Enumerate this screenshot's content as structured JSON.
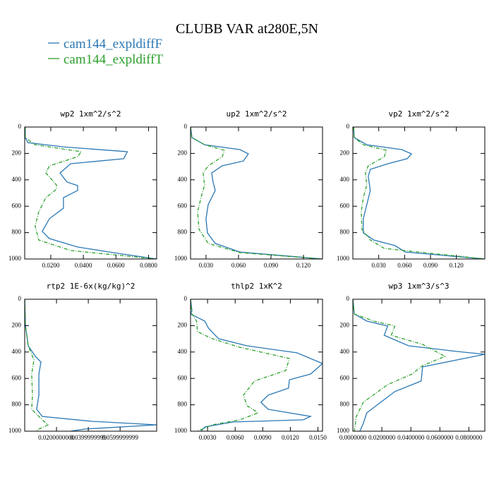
{
  "title": "CLUBB VAR at280E,5N",
  "chart_data": [
    {
      "type": "line",
      "title": "wp2  1xm^2/s^2",
      "ylim": [
        0,
        1000
      ],
      "y_inverted": true,
      "yticks": [
        0,
        200,
        400,
        600,
        800,
        1000
      ],
      "xlim": [
        0.004,
        0.085
      ],
      "xticks": [
        {
          "value": 0.02,
          "label": "0.0200"
        },
        {
          "value": 0.04,
          "label": "0.0400"
        },
        {
          "value": 0.06,
          "label": "0.0600"
        },
        {
          "value": 0.08,
          "label": "0.0800"
        }
      ],
      "series": [
        {
          "name": "cam144_expldiffF",
          "color": "#2b78b4",
          "style": "solid",
          "y": [
            0,
            80,
            118,
            150,
            187,
            240,
            278,
            348,
            417,
            444,
            481,
            535,
            615,
            695,
            791,
            845,
            909,
            952,
            1000
          ],
          "values": [
            0.0043,
            0.0043,
            0.006,
            0.0278,
            0.067,
            0.0648,
            0.0322,
            0.0257,
            0.03,
            0.0365,
            0.0365,
            0.0278,
            0.0278,
            0.0191,
            0.0148,
            0.0191,
            0.0365,
            0.0583,
            0.085
          ]
        },
        {
          "name": "cam144_expldiffT",
          "color": "#2ca02c",
          "style": "dashdot",
          "y": [
            0,
            80,
            134,
            187,
            225,
            294,
            348,
            439,
            471,
            535,
            642,
            749,
            856,
            936,
            1000
          ],
          "values": [
            0.0043,
            0.0043,
            0.0104,
            0.0387,
            0.0365,
            0.0191,
            0.017,
            0.0235,
            0.0235,
            0.017,
            0.0126,
            0.0104,
            0.0126,
            0.0322,
            0.085
          ]
        }
      ]
    },
    {
      "type": "line",
      "title": "up2  1xm^2/s^2",
      "ylim": [
        0,
        1000
      ],
      "y_inverted": true,
      "yticks": [
        0,
        200,
        400,
        600,
        800,
        1000
      ],
      "xlim": [
        0.0157,
        0.1376
      ],
      "xticks": [
        {
          "value": 0.03,
          "label": "0.030"
        },
        {
          "value": 0.06,
          "label": "0.060"
        },
        {
          "value": 0.09,
          "label": "0.090"
        },
        {
          "value": 0.12,
          "label": "0.120"
        }
      ],
      "series": [
        {
          "name": "cam144_expldiffF",
          "color": "#2b78b4",
          "style": "solid",
          "y": [
            0,
            80,
            134,
            171,
            203,
            257,
            294,
            348,
            417,
            481,
            588,
            695,
            802,
            882,
            947,
            1000
          ],
          "values": [
            0.0157,
            0.017,
            0.0287,
            0.0613,
            0.0691,
            0.0645,
            0.045,
            0.0352,
            0.0365,
            0.0385,
            0.032,
            0.03,
            0.0313,
            0.0385,
            0.0613,
            0.1376
          ]
        },
        {
          "name": "cam144_expldiffT",
          "color": "#2ca02c",
          "style": "dashdot",
          "y": [
            0,
            80,
            134,
            176,
            225,
            294,
            348,
            439,
            535,
            642,
            775,
            882,
            952,
            1000
          ],
          "values": [
            0.0157,
            0.017,
            0.0287,
            0.0469,
            0.045,
            0.032,
            0.0274,
            0.0287,
            0.0254,
            0.0222,
            0.0235,
            0.032,
            0.0613,
            0.1376
          ]
        }
      ]
    },
    {
      "type": "line",
      "title": "vp2  1xm^2/s^2",
      "ylim": [
        0,
        1000
      ],
      "y_inverted": true,
      "yticks": [
        0,
        200,
        400,
        600,
        800,
        1000
      ],
      "xlim": [
        0,
        0.153
      ],
      "xticks": [
        {
          "value": 0.03,
          "label": "0.030"
        },
        {
          "value": 0.06,
          "label": "0.060"
        },
        {
          "value": 0.09,
          "label": "0.090"
        },
        {
          "value": 0.12,
          "label": "0.120"
        }
      ],
      "series": [
        {
          "name": "cam144_expldiffF",
          "color": "#2b78b4",
          "style": "solid",
          "y": [
            0,
            80,
            134,
            171,
            203,
            240,
            278,
            321,
            374,
            481,
            588,
            695,
            802,
            856,
            898,
            947,
            1000
          ],
          "values": [
            0.001,
            0.0016,
            0.0162,
            0.0567,
            0.068,
            0.063,
            0.0405,
            0.0202,
            0.0178,
            0.0202,
            0.0162,
            0.0121,
            0.0121,
            0.0243,
            0.0486,
            0.0608,
            0.153
          ]
        },
        {
          "name": "cam144_expldiffT",
          "color": "#2ca02c",
          "style": "dashdot",
          "y": [
            0,
            80,
            134,
            176,
            225,
            294,
            348,
            439,
            535,
            642,
            775,
            856,
            920,
            1000
          ],
          "values": [
            0.001,
            0.0016,
            0.0121,
            0.0389,
            0.0365,
            0.0178,
            0.0146,
            0.0162,
            0.0121,
            0.0097,
            0.0105,
            0.0202,
            0.0365,
            0.153
          ]
        }
      ]
    },
    {
      "type": "line",
      "title": "rtp2  1E-6x(kg/kg)^2",
      "ylim": [
        0,
        1000
      ],
      "y_inverted": true,
      "yticks": [
        0,
        200,
        400,
        600,
        800,
        1000
      ],
      "xlim": [
        0,
        0.083
      ],
      "xticks": [
        {
          "value": 0.02,
          "label": "0.0200000000"
        },
        {
          "value": 0.04,
          "label": "0.0399999999"
        },
        {
          "value": 0.06,
          "label": "0.0599999999"
        }
      ],
      "series": [
        {
          "name": "cam144_expldiffF",
          "color": "#2b78b4",
          "style": "solid",
          "y": [
            0,
            193,
            353,
            433,
            476,
            567,
            727,
            834,
            888,
            925,
            952,
            984,
            1000
          ],
          "values": [
            0,
            0.0004,
            0.0022,
            0.0067,
            0.0102,
            0.0089,
            0.0089,
            0.0075,
            0.0111,
            0.0422,
            0.083,
            0.0377,
            0.0289
          ]
        },
        {
          "name": "cam144_expldiffT",
          "color": "#2ca02c",
          "style": "dashdot",
          "y": [
            0,
            193,
            353,
            460,
            567,
            727,
            834,
            914,
            952,
            984,
            1000
          ],
          "values": [
            0,
            0.0004,
            0.0022,
            0.0058,
            0.0044,
            0.0049,
            0.0044,
            0.0111,
            0.0147,
            0.0089,
            0.0075
          ]
        }
      ]
    },
    {
      "type": "line",
      "title": "thlp2  1xK^2",
      "ylim": [
        0,
        1000
      ],
      "y_inverted": true,
      "yticks": [
        0,
        200,
        400,
        600,
        800,
        1000
      ],
      "xlim": [
        0.00115,
        0.0155
      ],
      "xticks": [
        {
          "value": 0.003,
          "label": "0.0030"
        },
        {
          "value": 0.006,
          "label": "0.0060"
        },
        {
          "value": 0.009,
          "label": "0.0090"
        },
        {
          "value": 0.012,
          "label": "0.0120"
        },
        {
          "value": 0.015,
          "label": "0.0150"
        }
      ],
      "series": [
        {
          "name": "cam144_expldiffF",
          "color": "#2b78b4",
          "style": "solid",
          "y": [
            0,
            86,
            112,
            166,
            219,
            299,
            353,
            406,
            487,
            567,
            610,
            674,
            727,
            781,
            834,
            888,
            914,
            930,
            968,
            1000
          ],
          "values": [
            0.00115,
            0.0013,
            0.00115,
            0.0027,
            0.0031,
            0.0042,
            0.0073,
            0.0127,
            0.0155,
            0.0142,
            0.0119,
            0.0118,
            0.0096,
            0.0088,
            0.0096,
            0.0142,
            0.0134,
            0.0058,
            0.0027,
            0.0023
          ]
        },
        {
          "name": "cam144_expldiffT",
          "color": "#2ca02c",
          "style": "dashdot",
          "y": [
            0,
            112,
            166,
            246,
            299,
            364,
            449,
            540,
            620,
            727,
            807,
            861,
            914,
            952,
            1000
          ],
          "values": [
            0.00115,
            0.0013,
            0.0018,
            0.0019,
            0.0035,
            0.0065,
            0.0119,
            0.0115,
            0.0081,
            0.0069,
            0.0073,
            0.0085,
            0.0065,
            0.0035,
            0.0019
          ]
        }
      ]
    },
    {
      "type": "line",
      "title": "wp3  1xm^3/s^3",
      "ylim": [
        0,
        1000
      ],
      "y_inverted": true,
      "yticks": [
        0,
        200,
        400,
        600,
        800,
        1000
      ],
      "xlim": [
        0,
        0.091
      ],
      "xticks": [
        {
          "value": 0,
          "label": "0.0000000"
        },
        {
          "value": 0.02,
          "label": "0.0200000"
        },
        {
          "value": 0.04,
          "label": "0.0400000"
        },
        {
          "value": 0.06,
          "label": "0.0600000"
        },
        {
          "value": 0.08,
          "label": "0.0800000"
        }
      ],
      "series": [
        {
          "name": "cam144_expldiffF",
          "color": "#2b78b4",
          "style": "solid",
          "y": [
            0,
            112,
            166,
            203,
            273,
            353,
            396,
            417,
            513,
            620,
            700,
            781,
            861,
            941,
            1000
          ],
          "values": [
            0,
            0.001,
            0.0096,
            0.024,
            0.0216,
            0.0385,
            0.0722,
            0.091,
            0.0481,
            0.0471,
            0.0289,
            0.0192,
            0.0096,
            0.0072,
            0.0048
          ]
        },
        {
          "name": "cam144_expldiffT",
          "color": "#2ca02c",
          "style": "dashdot",
          "y": [
            0,
            112,
            166,
            203,
            273,
            342,
            433,
            503,
            567,
            647,
            781,
            888,
            1000
          ],
          "values": [
            0,
            0.001,
            0.0144,
            0.0289,
            0.0265,
            0.0481,
            0.0635,
            0.0481,
            0.0409,
            0.024,
            0.0072,
            0.0024,
            0.001
          ]
        }
      ]
    }
  ]
}
